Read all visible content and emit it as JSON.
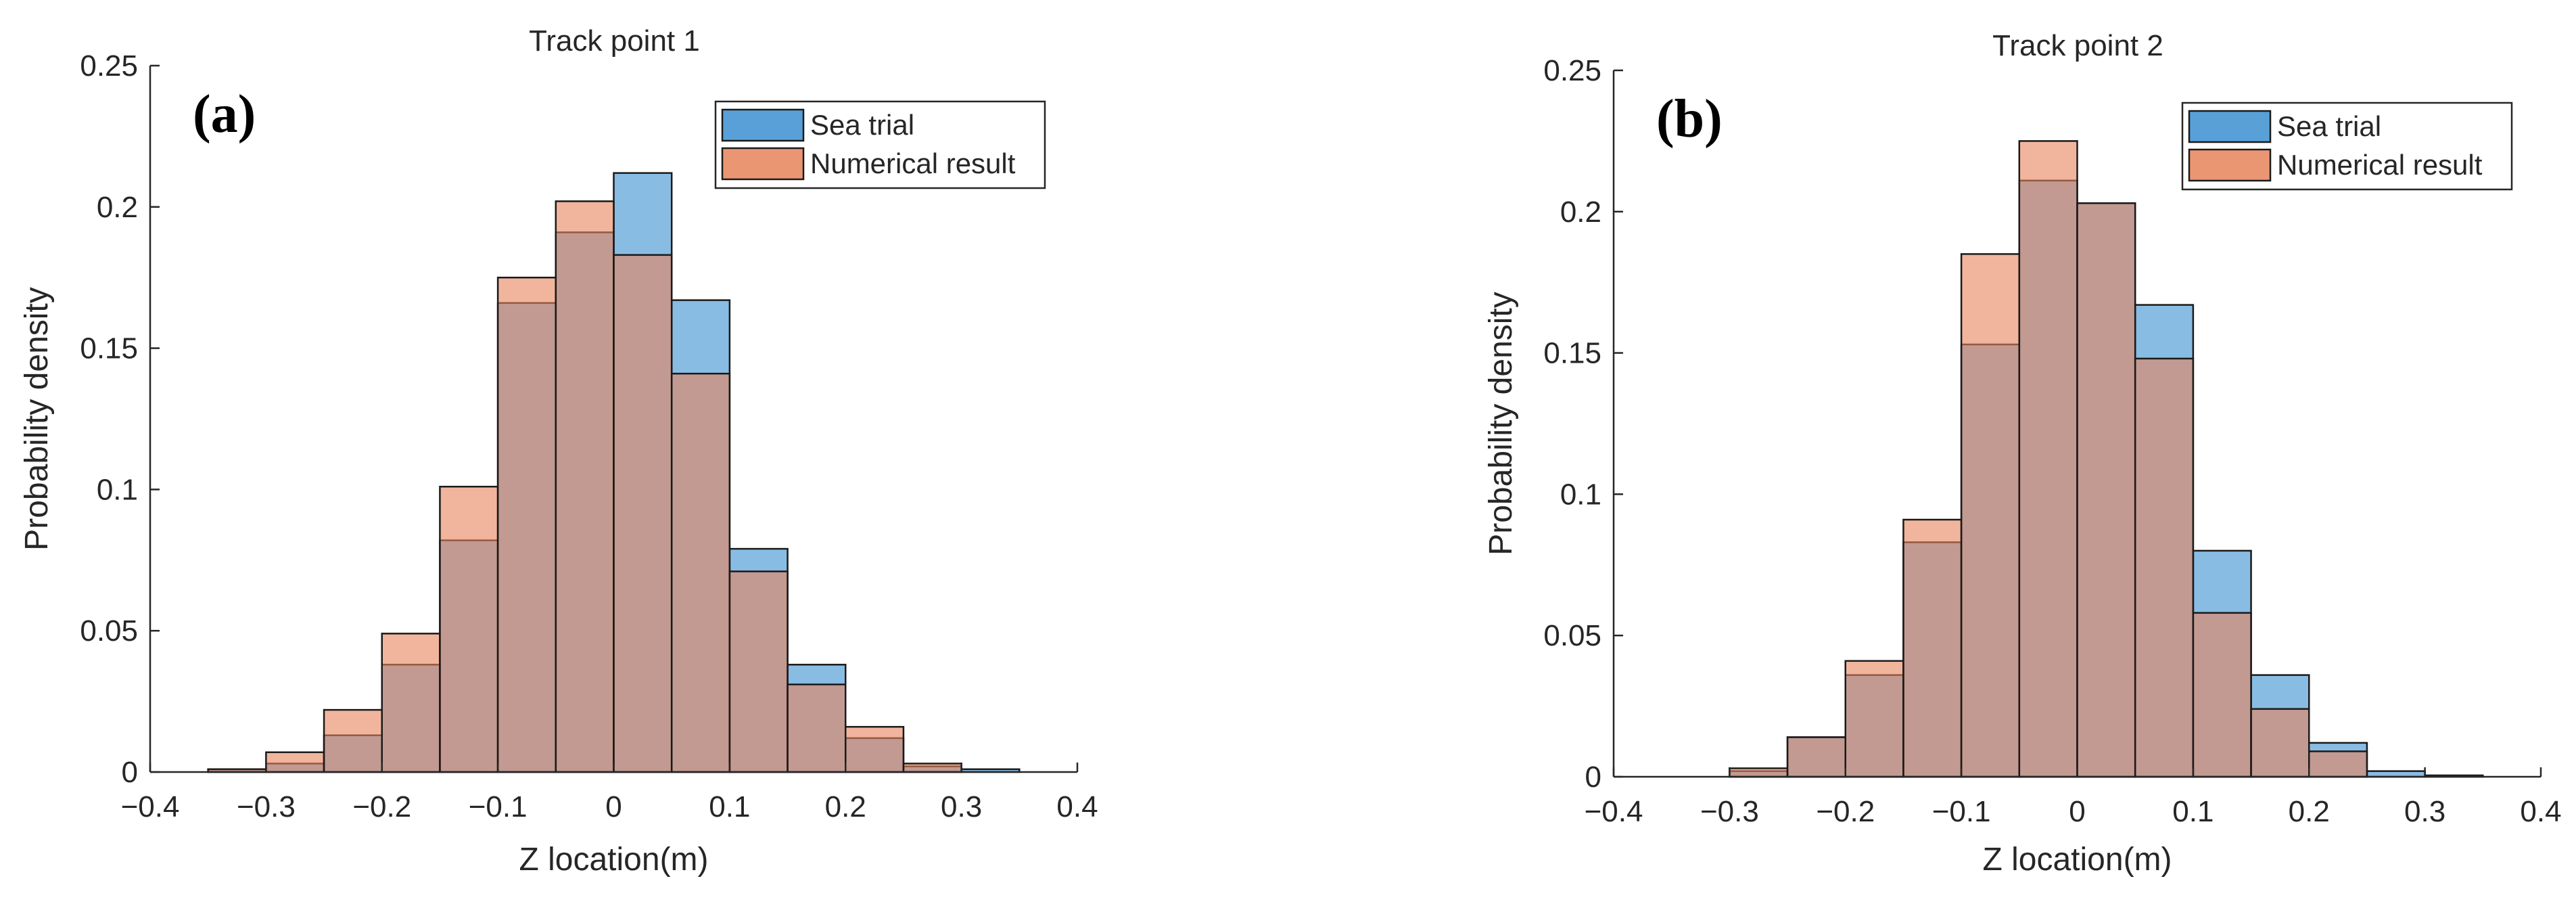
{
  "chart_data": [
    {
      "type": "bar",
      "panel_label": "(a)",
      "title": "Track point 1",
      "xlabel": "Z location(m)",
      "ylabel": "Probability density",
      "xlim": [
        -0.4,
        0.4
      ],
      "ylim": [
        0,
        0.25
      ],
      "xticks": [
        -0.4,
        -0.3,
        -0.2,
        -0.1,
        0,
        0.1,
        0.2,
        0.3,
        0.4
      ],
      "xtick_labels": [
        "−0.4",
        "−0.3",
        "−0.2",
        "−0.1",
        "0",
        "0.1",
        "0.2",
        "0.3",
        "0.4"
      ],
      "yticks": [
        0,
        0.05,
        0.1,
        0.15,
        0.2,
        0.25
      ],
      "ytick_labels": [
        "0",
        "0.05",
        "0.1",
        "0.15",
        "0.2",
        "0.25"
      ],
      "bin_edges": [
        -0.35,
        -0.3,
        -0.25,
        -0.2,
        -0.15,
        -0.1,
        -0.05,
        0,
        0.05,
        0.1,
        0.15,
        0.2,
        0.25,
        0.3,
        0.35
      ],
      "series": [
        {
          "name": "Sea trial",
          "color": "#3B8FD0",
          "values": [
            0.001,
            0.003,
            0.013,
            0.038,
            0.082,
            0.166,
            0.191,
            0.212,
            0.167,
            0.079,
            0.038,
            0.012,
            0.002,
            0.001
          ]
        },
        {
          "name": "Numerical result",
          "color": "#E8845B",
          "values": [
            0.001,
            0.007,
            0.022,
            0.049,
            0.101,
            0.175,
            0.202,
            0.183,
            0.141,
            0.071,
            0.031,
            0.016,
            0.003,
            0.0
          ]
        }
      ],
      "legend_position": "top-right"
    },
    {
      "type": "bar",
      "panel_label": "(b)",
      "title": "Track point 2",
      "xlabel": "Z location(m)",
      "ylabel": "Probability density",
      "xlim": [
        -0.4,
        0.4
      ],
      "ylim": [
        0,
        0.25
      ],
      "xticks": [
        -0.4,
        -0.3,
        -0.2,
        -0.1,
        0,
        0.1,
        0.2,
        0.3,
        0.4
      ],
      "xtick_labels": [
        "−0.4",
        "−0.3",
        "−0.2",
        "−0.1",
        "0",
        "0.1",
        "0.2",
        "0.3",
        "0.4"
      ],
      "yticks": [
        0,
        0.05,
        0.1,
        0.15,
        0.2,
        0.25
      ],
      "ytick_labels": [
        "0",
        "0.05",
        "0.1",
        "0.15",
        "0.2",
        "0.25"
      ],
      "bin_edges": [
        -0.3,
        -0.25,
        -0.2,
        -0.15,
        -0.1,
        -0.05,
        0,
        0.05,
        0.1,
        0.15,
        0.2,
        0.25,
        0.3,
        0.35
      ],
      "series": [
        {
          "name": "Sea trial",
          "color": "#3B8FD0",
          "values": [
            0.002,
            0.014,
            0.036,
            0.083,
            0.153,
            0.211,
            0.203,
            0.167,
            0.08,
            0.036,
            0.012,
            0.002,
            0.0005
          ]
        },
        {
          "name": "Numerical result",
          "color": "#E8845B",
          "values": [
            0.003,
            0.014,
            0.041,
            0.091,
            0.185,
            0.225,
            0.203,
            0.148,
            0.058,
            0.024,
            0.009,
            0.0,
            0.0
          ]
        }
      ],
      "legend_position": "top-right"
    }
  ]
}
